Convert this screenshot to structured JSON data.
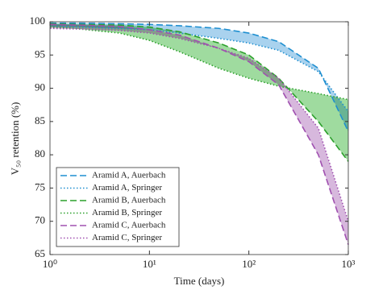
{
  "chart_data": {
    "type": "line",
    "xlabel": "Time (days)",
    "ylabel": "V₅₀ retention (%)",
    "x": [
      1,
      2,
      5,
      10,
      20,
      50,
      100,
      200,
      500,
      1000
    ],
    "xlog": true,
    "xlim": [
      1,
      1000
    ],
    "xticks": [
      {
        "value": 1,
        "label": "10⁰"
      },
      {
        "value": 10,
        "label": "10¹"
      },
      {
        "value": 100,
        "label": "10²"
      },
      {
        "value": 1000,
        "label": "10³"
      }
    ],
    "ylim": [
      65,
      100
    ],
    "yticks": [
      65,
      70,
      75,
      80,
      85,
      90,
      95,
      100
    ],
    "legend": "lower left",
    "series": [
      {
        "name": "Aramid A, Auerbach",
        "color": "#1f8fd0",
        "style": "dashed",
        "fill": "#8cc3e8",
        "values": [
          99.8,
          99.8,
          99.7,
          99.6,
          99.4,
          99.0,
          98.3,
          97.0,
          93.0,
          83.5
        ]
      },
      {
        "name": "Aramid A, Springer",
        "color": "#1f8fd0",
        "style": "dotted",
        "fill": "#8cc3e8",
        "values": [
          99.3,
          99.2,
          99.0,
          98.8,
          98.3,
          97.5,
          96.8,
          95.7,
          92.5,
          86.5
        ]
      },
      {
        "name": "Aramid B, Auerbach",
        "color": "#2ca02c",
        "style": "dashed",
        "fill": "#7fcf7f",
        "values": [
          99.7,
          99.6,
          99.5,
          99.2,
          98.5,
          96.8,
          95.0,
          91.5,
          85.0,
          79.0
        ]
      },
      {
        "name": "Aramid B, Springer",
        "color": "#2ca02c",
        "style": "dotted",
        "fill": "#7fcf7f",
        "values": [
          99.2,
          98.9,
          98.3,
          97.2,
          95.5,
          93.0,
          91.5,
          90.3,
          89.2,
          88.3
        ]
      },
      {
        "name": "Aramid C, Auerbach",
        "color": "#a050b0",
        "style": "dashed",
        "fill": "#c9a0d2",
        "values": [
          99.6,
          99.5,
          99.3,
          98.8,
          98.0,
          96.0,
          94.0,
          90.5,
          80.0,
          66.5
        ]
      },
      {
        "name": "Aramid C, Springer",
        "color": "#a050b0",
        "style": "dotted",
        "fill": "#c9a0d2",
        "values": [
          99.0,
          98.9,
          98.7,
          98.3,
          97.5,
          96.0,
          94.5,
          91.5,
          84.0,
          70.0
        ]
      }
    ]
  }
}
